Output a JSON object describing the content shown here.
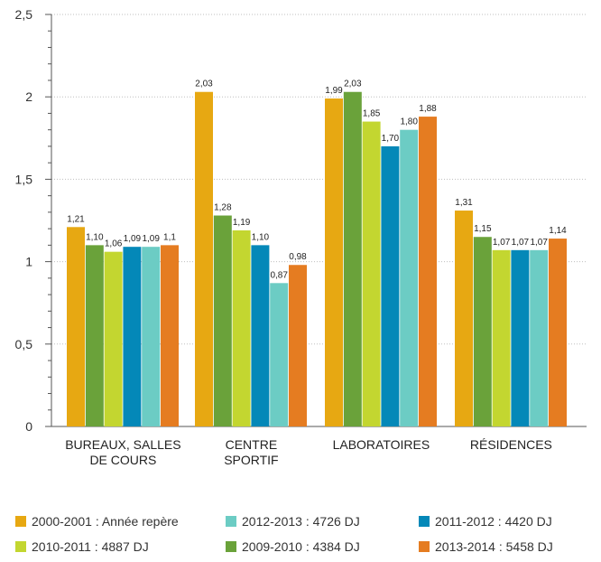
{
  "chart_data": {
    "type": "bar",
    "categories": [
      [
        "BUREAUX, SALLES",
        "DE COURS"
      ],
      [
        "CENTRE",
        "SPORTIF"
      ],
      [
        "LABORATOIRES"
      ],
      [
        "RÉSIDENCES"
      ]
    ],
    "ylim": [
      0,
      2.5
    ],
    "yticks": [
      {
        "value": 0,
        "label": "0"
      },
      {
        "value": 0.5,
        "label": "0,5"
      },
      {
        "value": 1,
        "label": "1"
      },
      {
        "value": 1.5,
        "label": "1,5"
      },
      {
        "value": 2,
        "label": "2"
      },
      {
        "value": 2.5,
        "label": "2,5"
      }
    ],
    "minor_ticks_per_interval": 4,
    "grid": true,
    "legend_position": "bottom",
    "series": [
      {
        "name": "2000-2001 : Année repère",
        "color": "#E7A812",
        "values": [
          1.21,
          2.03,
          1.99,
          1.31
        ],
        "labels": [
          "1,21",
          "2,03",
          "1,99",
          "1,31"
        ]
      },
      {
        "name": "2009-2010 : 4384 DJ",
        "color": "#6AA23A",
        "values": [
          1.1,
          1.28,
          2.03,
          1.15
        ],
        "labels": [
          "1,10",
          "1,28",
          "2,03",
          "1,15"
        ]
      },
      {
        "name": "2010-2011 : 4887 DJ",
        "color": "#C3D630",
        "values": [
          1.06,
          1.19,
          1.85,
          1.07
        ],
        "labels": [
          "1,06",
          "1,19",
          "1,85",
          "1,07"
        ]
      },
      {
        "name": "2011-2012 : 4420 DJ",
        "color": "#0488B8",
        "values": [
          1.09,
          1.1,
          1.7,
          1.07
        ],
        "labels": [
          "1,09",
          "1,10",
          "1,70",
          "1,07"
        ]
      },
      {
        "name": "2012-2013 : 4726 DJ",
        "color": "#6CCCC4",
        "values": [
          1.09,
          0.87,
          1.8,
          1.07
        ],
        "labels": [
          "1,09",
          "0,87",
          "1,80",
          "1,07"
        ]
      },
      {
        "name": "2013-2014 : 5458 DJ",
        "color": "#E57C21",
        "values": [
          1.1,
          0.98,
          1.88,
          1.14
        ],
        "labels": [
          "1,1",
          "0,98",
          "1,88",
          "1,14"
        ]
      }
    ],
    "legend_order": [
      0,
      2,
      4,
      1,
      3,
      5
    ]
  }
}
